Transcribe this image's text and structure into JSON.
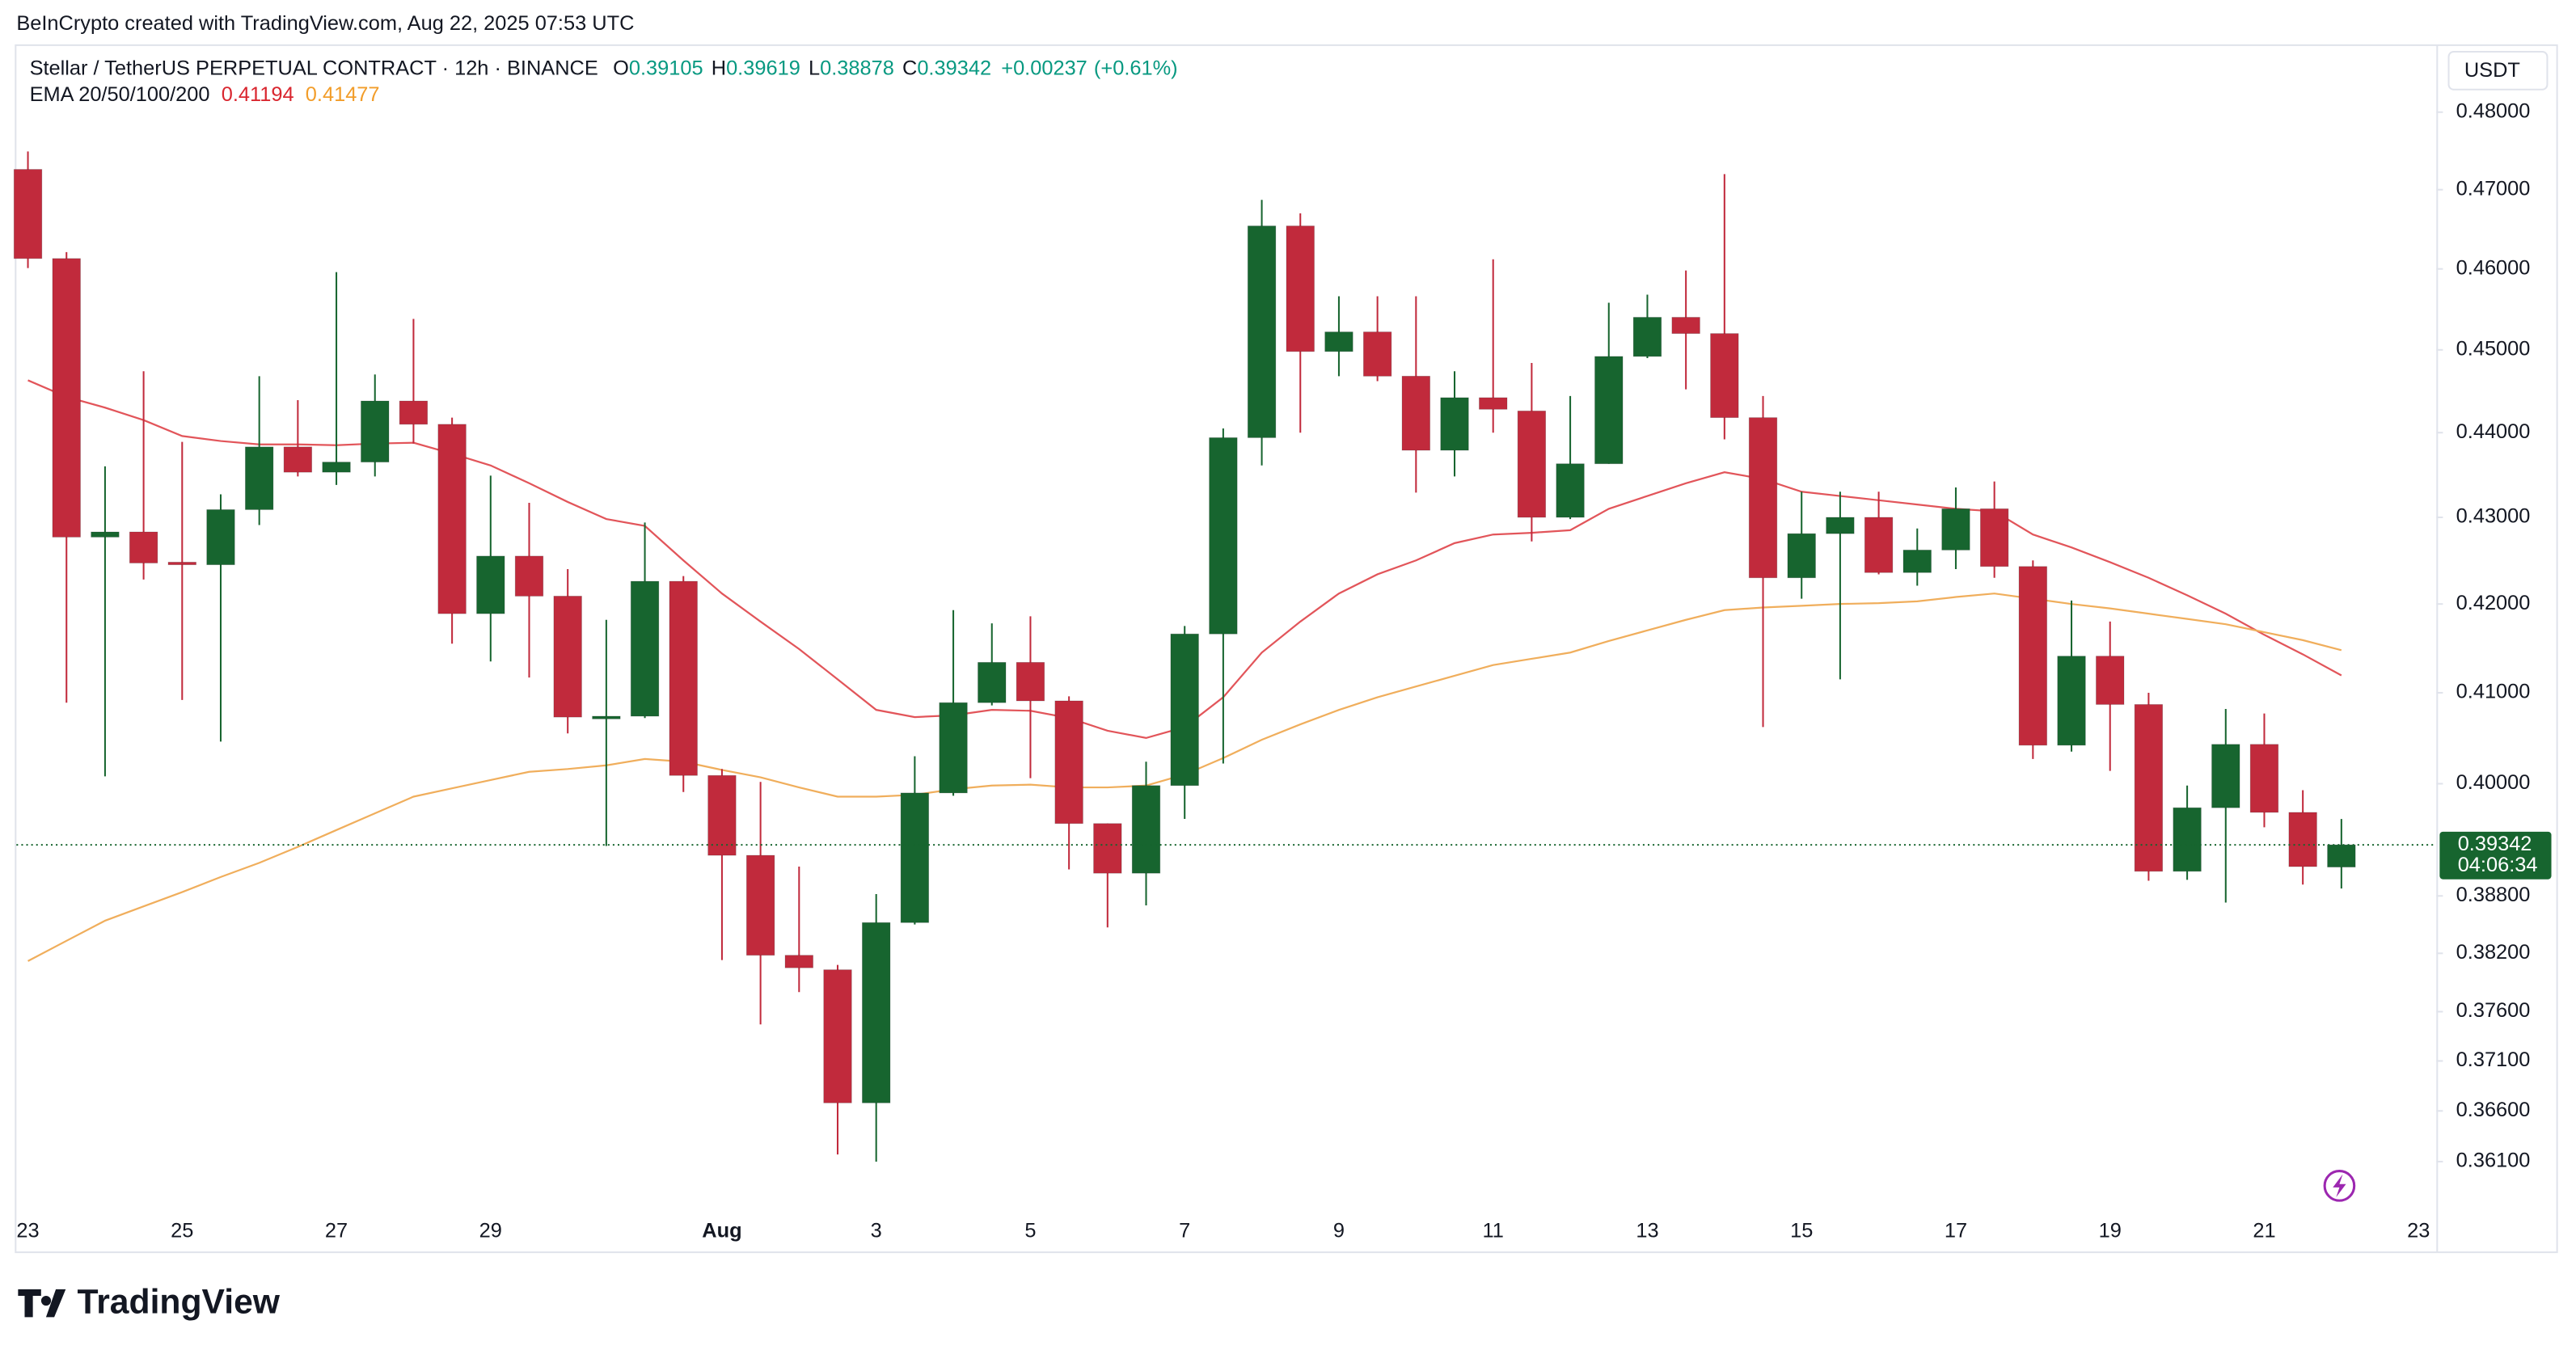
{
  "header": {
    "attribution": "BeInCrypto created with TradingView.com, Aug 22, 2025 07:53 UTC"
  },
  "chart_data": {
    "type": "candlestick",
    "title": "Stellar / TetherUS PERPETUAL CONTRACT · 12h · BINANCE",
    "ohlc_labels": [
      "O",
      "H",
      "L",
      "C"
    ],
    "change": "+0.00237",
    "change_pct": "(+0.61%)",
    "indicator": "EMA 20/50/100/200",
    "y_unit": "USDT",
    "countdown": "04:06:34",
    "log_scale": true,
    "grid": false,
    "up_color": "#17652f",
    "down_color": "#c12a3c",
    "categories": [
      "23",
      null,
      null,
      null,
      "25",
      null,
      null,
      null,
      "27",
      null,
      null,
      null,
      "29",
      null,
      null,
      null,
      null,
      null,
      "Aug",
      null,
      null,
      null,
      "3",
      null,
      null,
      null,
      "5",
      null,
      null,
      null,
      "7",
      null,
      null,
      null,
      "9",
      null,
      null,
      null,
      "11",
      null,
      null,
      null,
      "13",
      null,
      null,
      null,
      "15",
      null,
      null,
      null,
      "17",
      null,
      null,
      null,
      "19",
      null,
      null,
      null,
      "21",
      null,
      null,
      null,
      "23"
    ],
    "open": [
      0.4726,
      0.4613,
      0.4277,
      0.4283,
      0.4248,
      0.4245,
      0.4309,
      0.4383,
      0.4353,
      0.4365,
      0.4438,
      0.441,
      0.4189,
      0.4255,
      0.4209,
      0.4071,
      0.4074,
      0.4226,
      0.4009,
      0.3923,
      0.3818,
      0.3803,
      0.3668,
      0.3852,
      0.399,
      0.4089,
      0.4134,
      0.4091,
      0.3957,
      0.3904,
      0.3998,
      0.4166,
      0.4394,
      0.4654,
      0.4498,
      0.4522,
      0.4468,
      0.4379,
      0.4442,
      0.4426,
      0.43,
      0.4363,
      0.4492,
      0.454,
      0.452,
      0.4418,
      0.423,
      0.4281,
      0.43,
      0.4236,
      0.4262,
      0.431,
      0.4243,
      0.4042,
      0.4141,
      0.4087,
      0.3906,
      0.3974,
      0.4043,
      0.3969,
      0.39105,
      null,
      null
    ],
    "high": [
      0.4749,
      0.4621,
      0.436,
      0.4474,
      0.4389,
      0.4327,
      0.4468,
      0.4439,
      0.4596,
      0.447,
      0.4538,
      0.4418,
      0.4349,
      0.4317,
      0.424,
      0.4182,
      0.4294,
      0.4232,
      0.4016,
      0.4002,
      0.3911,
      0.3808,
      0.3882,
      0.403,
      0.4193,
      0.4178,
      0.4186,
      0.4096,
      0.3957,
      0.4024,
      0.4175,
      0.4405,
      0.4687,
      0.467,
      0.4566,
      0.4566,
      0.4566,
      0.4474,
      0.4612,
      0.4484,
      0.4444,
      0.4558,
      0.4568,
      0.4598,
      0.472,
      0.4444,
      0.433,
      0.433,
      0.433,
      0.4287,
      0.4335,
      0.4342,
      0.425,
      0.4204,
      0.418,
      0.41,
      0.3998,
      0.4082,
      0.4077,
      0.3993,
      0.39619,
      null,
      null
    ],
    "low": [
      0.4601,
      0.4089,
      0.4008,
      0.4228,
      0.4092,
      0.4046,
      0.4291,
      0.4348,
      0.4338,
      0.4348,
      0.4387,
      0.4155,
      0.4135,
      0.4117,
      0.4055,
      0.3933,
      0.4072,
      0.3991,
      0.3813,
      0.3747,
      0.378,
      0.3617,
      0.361,
      0.385,
      0.3987,
      0.4086,
      0.4006,
      0.3908,
      0.3847,
      0.387,
      0.3962,
      0.4022,
      0.4361,
      0.44,
      0.4468,
      0.4462,
      0.4329,
      0.4348,
      0.44,
      0.4272,
      0.4298,
      0.4363,
      0.449,
      0.4452,
      0.4392,
      0.4062,
      0.4206,
      0.4115,
      0.4234,
      0.4221,
      0.424,
      0.423,
      0.4027,
      0.4035,
      0.4014,
      0.3896,
      0.3897,
      0.3873,
      0.3953,
      0.3892,
      0.38878,
      null,
      null
    ],
    "close": [
      0.4613,
      0.4277,
      0.4283,
      0.4247,
      0.4245,
      0.4309,
      0.4383,
      0.4353,
      0.4365,
      0.4438,
      0.441,
      0.4189,
      0.4255,
      0.4209,
      0.4073,
      0.4074,
      0.4226,
      0.4009,
      0.3923,
      0.3818,
      0.3805,
      0.3668,
      0.3852,
      0.399,
      0.4089,
      0.4134,
      0.4091,
      0.3957,
      0.3904,
      0.3998,
      0.4166,
      0.4394,
      0.4654,
      0.4498,
      0.4522,
      0.4468,
      0.4379,
      0.4442,
      0.4428,
      0.43,
      0.4363,
      0.4492,
      0.454,
      0.452,
      0.4418,
      0.423,
      0.4281,
      0.43,
      0.4236,
      0.4262,
      0.431,
      0.4243,
      0.4042,
      0.4141,
      0.4087,
      0.3906,
      0.3974,
      0.4043,
      0.3969,
      0.3911,
      0.39342,
      null,
      null
    ],
    "lines": [
      {
        "color": "#e2555a",
        "value_color": "#d9262f",
        "values": [
          0.4463,
          0.4443,
          0.443,
          0.4415,
          0.4396,
          0.439,
          0.4386,
          0.4386,
          0.4385,
          0.4387,
          0.4388,
          0.4375,
          0.4361,
          0.434,
          0.4318,
          0.4298,
          0.429,
          0.425,
          0.4212,
          0.418,
          0.4149,
          0.4115,
          0.4081,
          0.4073,
          0.4075,
          0.4081,
          0.408,
          0.4072,
          0.4058,
          0.405,
          0.4062,
          0.4095,
          0.4145,
          0.418,
          0.4212,
          0.4234,
          0.425,
          0.427,
          0.428,
          0.4282,
          0.4285,
          0.431,
          0.4325,
          0.434,
          0.4353,
          0.4345,
          0.433,
          0.4325,
          0.432,
          0.4315,
          0.431,
          0.4307,
          0.428,
          0.4265,
          0.4248,
          0.423,
          0.421,
          0.4189,
          0.4165,
          0.4143,
          0.41194,
          null,
          null
        ]
      },
      {
        "color": "#f0ae5c",
        "value_color": "#f29d2a",
        "values": [
          0.3812,
          0.3833,
          0.3854,
          0.3869,
          0.3884,
          0.39,
          0.3915,
          0.3932,
          0.395,
          0.3968,
          0.3986,
          0.3995,
          0.4004,
          0.4013,
          0.4016,
          0.402,
          0.4027,
          0.4024,
          0.4015,
          0.4007,
          0.3996,
          0.3986,
          0.3986,
          0.3988,
          0.3994,
          0.3998,
          0.3999,
          0.3996,
          0.3996,
          0.3998,
          0.401,
          0.4028,
          0.4048,
          0.4065,
          0.4081,
          0.4095,
          0.4107,
          0.4119,
          0.4131,
          0.4138,
          0.4145,
          0.4158,
          0.417,
          0.4182,
          0.4193,
          0.4196,
          0.4198,
          0.42,
          0.4201,
          0.4203,
          0.4208,
          0.4212,
          0.4206,
          0.42,
          0.4195,
          0.4189,
          0.4183,
          0.4177,
          0.4168,
          0.4159,
          0.41477,
          null,
          null
        ]
      }
    ],
    "ylim": [
      0.3523,
      0.4887
    ],
    "yticks": [
      {
        "value": 0.48,
        "label": "0.48000"
      },
      {
        "value": 0.47,
        "label": "0.47000"
      },
      {
        "value": 0.46,
        "label": "0.46000"
      },
      {
        "value": 0.45,
        "label": "0.45000"
      },
      {
        "value": 0.44,
        "label": "0.44000"
      },
      {
        "value": 0.43,
        "label": "0.43000"
      },
      {
        "value": 0.42,
        "label": "0.42000"
      },
      {
        "value": 0.41,
        "label": "0.41000"
      },
      {
        "value": 0.4,
        "label": "0.40000"
      },
      {
        "value": 0.388,
        "label": "0.38800"
      },
      {
        "value": 0.382,
        "label": "0.38200"
      },
      {
        "value": 0.376,
        "label": "0.37600"
      },
      {
        "value": 0.371,
        "label": "0.37100"
      },
      {
        "value": 0.366,
        "label": "0.36600"
      },
      {
        "value": 0.361,
        "label": "0.36100"
      }
    ]
  },
  "footer": {
    "logo": "TradingView"
  }
}
